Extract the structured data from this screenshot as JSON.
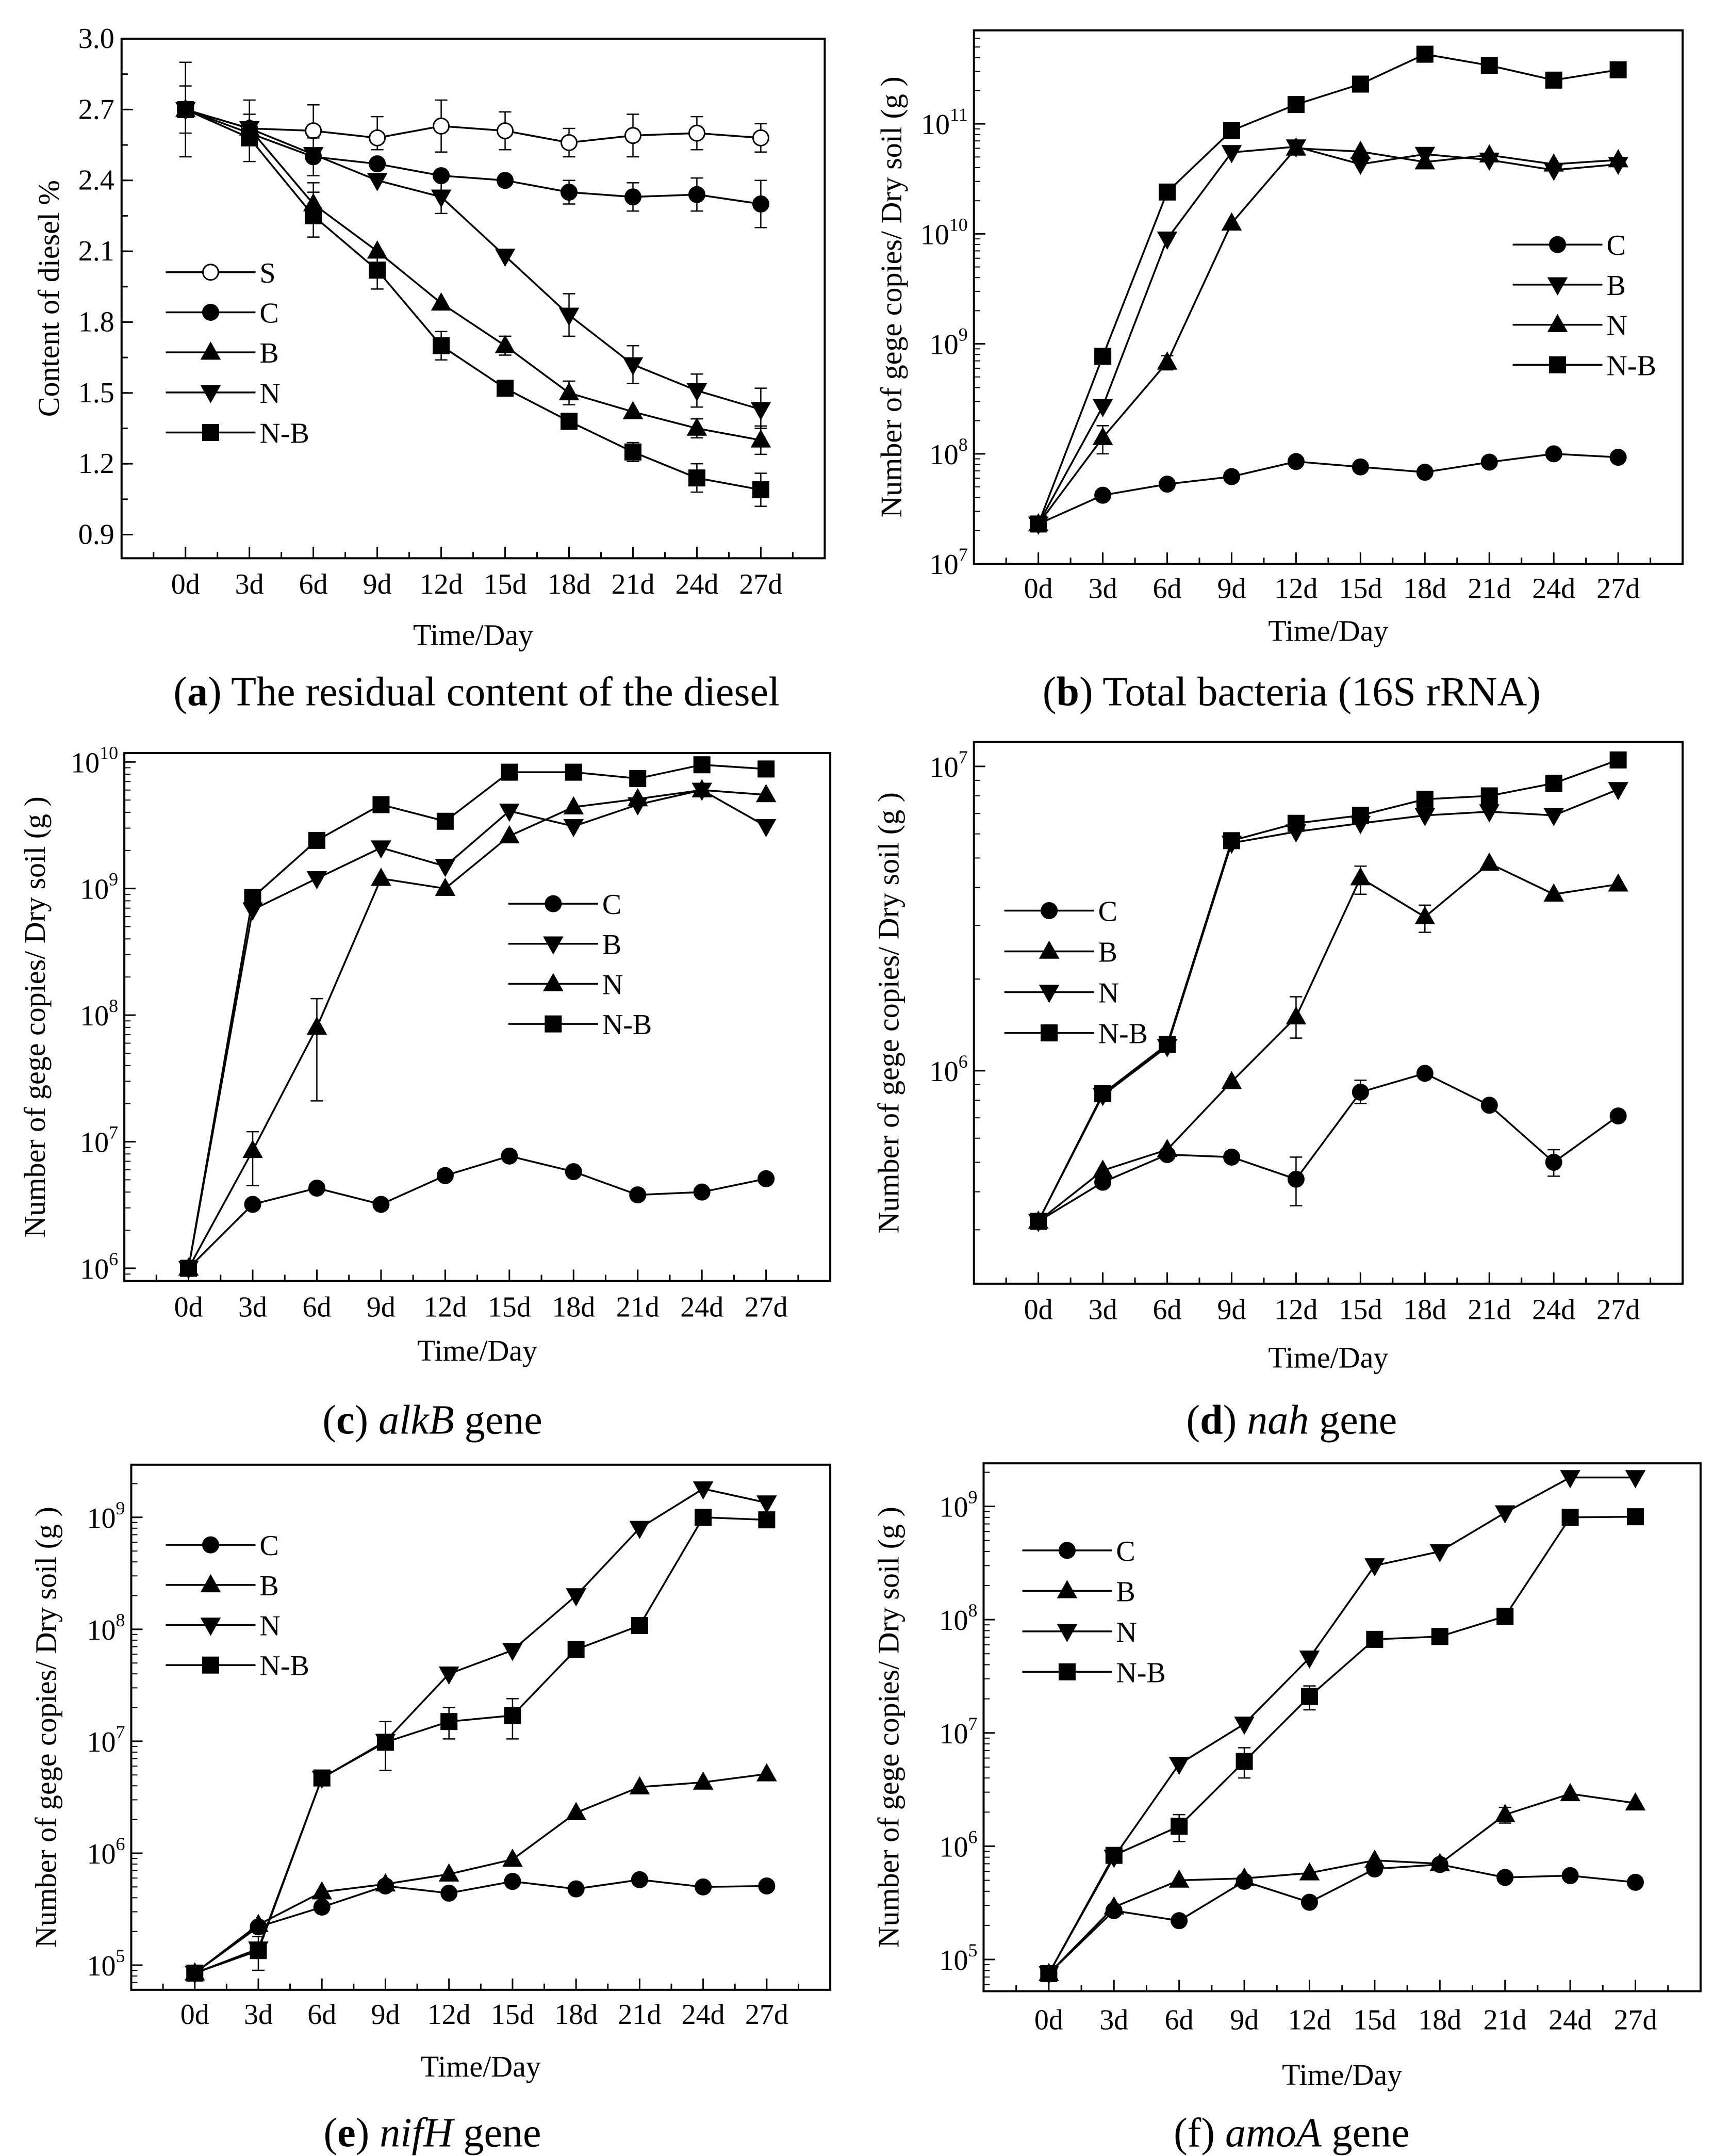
{
  "chart_data": [
    {
      "id": "a",
      "type": "line",
      "scale": "linear",
      "caption": {
        "letter": "a",
        "italic": "",
        "text": "The residual content of the diesel",
        "bold_letter": true
      },
      "xlabel": "Time/Day",
      "ylabel": "Content of diesel %",
      "x": [
        0,
        3,
        6,
        9,
        12,
        15,
        18,
        21,
        24,
        27
      ],
      "xtick_labels": [
        "0d",
        "3d",
        "6d",
        "9d",
        "12d",
        "15d",
        "18d",
        "21d",
        "24d",
        "27d"
      ],
      "xlim": [
        -3,
        30
      ],
      "ylim": [
        0.8,
        3.0
      ],
      "yticks": [
        0.9,
        1.2,
        1.5,
        1.8,
        2.1,
        2.4,
        2.7,
        3.0
      ],
      "ytick_labels": [
        "0.9",
        "1.2",
        "1.5",
        "1.8",
        "2.1",
        "2.4",
        "2.7",
        "3.0"
      ],
      "legend_position": "center-left",
      "series": [
        {
          "name": "S",
          "marker": "open-circle",
          "values": [
            2.7,
            2.62,
            2.61,
            2.58,
            2.63,
            2.61,
            2.56,
            2.59,
            2.6,
            2.58
          ],
          "errors": [
            [
              0,
              2.5,
              2.9
            ],
            [
              1,
              2.55,
              2.74
            ],
            [
              2,
              2.5,
              2.72
            ],
            [
              3,
              2.53,
              2.67
            ],
            [
              4,
              2.52,
              2.74
            ],
            [
              5,
              2.53,
              2.69
            ],
            [
              6,
              2.5,
              2.62
            ],
            [
              7,
              2.5,
              2.68
            ],
            [
              8,
              2.53,
              2.67
            ],
            [
              9,
              2.52,
              2.64
            ]
          ]
        },
        {
          "name": "C",
          "marker": "circle",
          "values": [
            2.7,
            2.6,
            2.5,
            2.47,
            2.42,
            2.4,
            2.35,
            2.33,
            2.34,
            2.3
          ],
          "errors": [
            [
              2,
              2.42,
              2.58
            ],
            [
              6,
              2.3,
              2.4
            ],
            [
              7,
              2.27,
              2.39
            ],
            [
              8,
              2.27,
              2.41
            ],
            [
              9,
              2.2,
              2.4
            ]
          ]
        },
        {
          "name": "B",
          "marker": "triangle-up",
          "values": [
            2.7,
            2.62,
            2.3,
            2.1,
            1.88,
            1.7,
            1.5,
            1.42,
            1.35,
            1.3
          ],
          "errors": [
            [
              2,
              2.22,
              2.39
            ],
            [
              5,
              1.66,
              1.74
            ],
            [
              6,
              1.45,
              1.55
            ],
            [
              8,
              1.31,
              1.39
            ],
            [
              9,
              1.24,
              1.36
            ]
          ]
        },
        {
          "name": "N",
          "marker": "triangle-down",
          "values": [
            2.7,
            2.62,
            2.51,
            2.4,
            2.33,
            2.08,
            1.83,
            1.62,
            1.51,
            1.43
          ],
          "errors": [
            [
              0,
              2.6,
              2.8
            ],
            [
              4,
              2.26,
              2.4
            ],
            [
              6,
              1.74,
              1.92
            ],
            [
              7,
              1.54,
              1.7
            ],
            [
              8,
              1.44,
              1.58
            ],
            [
              9,
              1.35,
              1.52
            ]
          ]
        },
        {
          "name": "N-B",
          "marker": "square",
          "values": [
            2.7,
            2.58,
            2.25,
            2.02,
            1.7,
            1.52,
            1.38,
            1.25,
            1.14,
            1.09
          ],
          "errors": [
            [
              1,
              2.48,
              2.68
            ],
            [
              2,
              2.16,
              2.35
            ],
            [
              3,
              1.94,
              2.1
            ],
            [
              4,
              1.64,
              1.76
            ],
            [
              7,
              1.21,
              1.29
            ],
            [
              8,
              1.08,
              1.2
            ],
            [
              9,
              1.02,
              1.16
            ]
          ]
        }
      ]
    },
    {
      "id": "b",
      "type": "line",
      "scale": "log",
      "caption": {
        "letter": "b",
        "italic": "",
        "text": "Total bacteria (16S rRNA)",
        "bold_letter": true
      },
      "xlabel": "Time/Day",
      "ylabel": "Number of gege copies/ Dry soil (g )",
      "x": [
        0,
        3,
        6,
        9,
        12,
        15,
        18,
        21,
        24,
        27
      ],
      "xtick_labels": [
        "0d",
        "3d",
        "6d",
        "9d",
        "12d",
        "15d",
        "18d",
        "21d",
        "24d",
        "27d"
      ],
      "xlim": [
        -3,
        30
      ],
      "ylim_log10": [
        7,
        11.85
      ],
      "yticks_exp": [
        7,
        8,
        9,
        10,
        11
      ],
      "legend_position": "center-right",
      "series": [
        {
          "name": "C",
          "marker": "circle",
          "values": [
            23000000.0,
            42000000.0,
            53000000.0,
            62000000.0,
            85000000.0,
            76000000.0,
            68000000.0,
            84000000.0,
            100000000.0,
            93000000.0
          ]
        },
        {
          "name": "B",
          "marker": "triangle-down",
          "values": [
            23000000.0,
            270000000.0,
            9000000000.0,
            55000000000.0,
            62000000000.0,
            43000000000.0,
            53000000000.0,
            47000000000.0,
            38000000000.0,
            43000000000.0
          ]
        },
        {
          "name": "N",
          "marker": "triangle-up",
          "values": [
            23000000.0,
            140000000.0,
            680000000.0,
            12500000000.0,
            60000000000.0,
            56000000000.0,
            45000000000.0,
            52000000000.0,
            43000000000.0,
            47000000000.0
          ],
          "errors": [
            [
              1,
              100000000.0,
              180000000.0
            ],
            [
              2,
              580000000.0,
              780000000.0
            ]
          ]
        },
        {
          "name": "N-B",
          "marker": "square",
          "values": [
            23000000.0,
            770000000.0,
            24000000000.0,
            87000000000.0,
            150000000000.0,
            230000000000.0,
            430000000000.0,
            340000000000.0,
            250000000000.0,
            310000000000.0
          ]
        }
      ]
    },
    {
      "id": "c",
      "type": "line",
      "scale": "log",
      "caption": {
        "letter": "c",
        "italic": "alkB",
        "text": " gene",
        "bold_letter": true
      },
      "xlabel": "Time/Day",
      "ylabel": "Number of gege copies/ Dry soil (g )",
      "x": [
        0,
        3,
        6,
        9,
        12,
        15,
        18,
        21,
        24,
        27
      ],
      "xtick_labels": [
        "0d",
        "3d",
        "6d",
        "9d",
        "12d",
        "15d",
        "18d",
        "21d",
        "24d",
        "27d"
      ],
      "xlim": [
        -3,
        30
      ],
      "ylim_log10": [
        5.9,
        10.07
      ],
      "yticks_exp": [
        6,
        7,
        8,
        9,
        10
      ],
      "legend_position": "center-right",
      "series": [
        {
          "name": "C",
          "marker": "circle",
          "values": [
            1000000.0,
            3200000.0,
            4300000.0,
            3200000.0,
            5400000.0,
            7700000.0,
            5800000.0,
            3800000.0,
            4000000.0,
            5100000.0
          ]
        },
        {
          "name": "B",
          "marker": "triangle-down",
          "values": [
            1000000.0,
            680000000.0,
            1200000000.0,
            2100000000.0,
            1500000000.0,
            4100000000.0,
            3100000000.0,
            4600000000.0,
            6000000000.0,
            3100000000.0
          ]
        },
        {
          "name": "N",
          "marker": "triangle-up",
          "values": [
            1000000.0,
            8500000.0,
            80000000.0,
            1200000000.0,
            1000000000.0,
            2600000000.0,
            4400000000.0,
            5100000000.0,
            6000000000.0,
            5500000000.0
          ],
          "errors": [
            [
              1,
              4500000.0,
              12000000.0
            ],
            [
              2,
              21000000.0,
              135000000.0
            ]
          ]
        },
        {
          "name": "N-B",
          "marker": "square",
          "values": [
            1000000.0,
            850000000.0,
            2400000000.0,
            4600000000.0,
            3400000000.0,
            8300000000.0,
            8300000000.0,
            7400000000.0,
            9500000000.0,
            8800000000.0
          ]
        }
      ]
    },
    {
      "id": "d",
      "type": "line",
      "scale": "log",
      "caption": {
        "letter": "d",
        "italic": "nah",
        "text": " gene",
        "bold_letter": true
      },
      "xlabel": "Time/Day",
      "ylabel": "Number of gege copies/ Dry soil (g )",
      "x": [
        0,
        3,
        6,
        9,
        12,
        15,
        18,
        21,
        24,
        27
      ],
      "xtick_labels": [
        "0d",
        "3d",
        "6d",
        "9d",
        "12d",
        "15d",
        "18d",
        "21d",
        "24d",
        "27d"
      ],
      "xlim": [
        -3,
        30
      ],
      "ylim_log10": [
        5.3,
        7.08
      ],
      "yticks_exp": [
        6,
        7
      ],
      "legend_position": "center-left",
      "series": [
        {
          "name": "C",
          "marker": "circle",
          "values": [
            320000.0,
            430000.0,
            530000.0,
            520000.0,
            440000.0,
            850000.0,
            980000.0,
            770000.0,
            500000.0,
            710000.0
          ],
          "errors": [
            [
              4,
              360000.0,
              520000.0
            ],
            [
              5,
              780000.0,
              930000.0
            ],
            [
              8,
              450000.0,
              550000.0
            ]
          ]
        },
        {
          "name": "B",
          "marker": "triangle-up",
          "values": [
            320000.0,
            470000.0,
            550000.0,
            920000.0,
            1500000.0,
            4300000.0,
            3200000.0,
            4800000.0,
            3800000.0,
            4100000.0
          ],
          "errors": [
            [
              4,
              1280000.0,
              1750000.0
            ],
            [
              5,
              3800000.0,
              4700000.0
            ],
            [
              6,
              2850000.0,
              3500000.0
            ]
          ]
        },
        {
          "name": "N",
          "marker": "triangle-down",
          "values": [
            320000.0,
            830000.0,
            1200000.0,
            5600000.0,
            6100000.0,
            6500000.0,
            6900000.0,
            7100000.0,
            6900000.0,
            8400000.0
          ]
        },
        {
          "name": "N-B",
          "marker": "square",
          "values": [
            320000.0,
            840000.0,
            1220000.0,
            5700000.0,
            6500000.0,
            6900000.0,
            7800000.0,
            8000000.0,
            8800000.0,
            10500000.0
          ]
        }
      ]
    },
    {
      "id": "e",
      "type": "line",
      "scale": "log",
      "caption": {
        "letter": "e",
        "italic": "nifH",
        "text": " gene",
        "bold_letter": true
      },
      "xlabel": "Time/Day",
      "ylabel": "Number of gege copies/ Dry soil (g )",
      "x": [
        0,
        3,
        6,
        9,
        12,
        15,
        18,
        21,
        24,
        27
      ],
      "xtick_labels": [
        "0d",
        "3d",
        "6d",
        "9d",
        "12d",
        "15d",
        "18d",
        "21d",
        "24d",
        "27d"
      ],
      "xlim": [
        -3,
        30
      ],
      "ylim_log10": [
        4.78,
        9.47
      ],
      "yticks_exp": [
        5,
        6,
        7,
        8,
        9
      ],
      "legend_position": "upper-left",
      "series": [
        {
          "name": "C",
          "marker": "circle",
          "values": [
            85000.0,
            220000.0,
            330000.0,
            510000.0,
            440000.0,
            560000.0,
            480000.0,
            580000.0,
            500000.0,
            510000.0
          ]
        },
        {
          "name": "B",
          "marker": "triangle-up",
          "values": [
            85000.0,
            230000.0,
            450000.0,
            530000.0,
            650000.0,
            880000.0,
            2300000.0,
            3900000.0,
            4300000.0,
            5100000.0
          ]
        },
        {
          "name": "N",
          "marker": "triangle-down",
          "values": [
            85000.0,
            140000.0,
            4700000.0,
            10000000.0,
            40000000.0,
            65000000.0,
            200000000.0,
            800000000.0,
            1800000000.0,
            1350000000.0
          ]
        },
        {
          "name": "N-B",
          "marker": "square",
          "values": [
            85000.0,
            135000.0,
            4700000.0,
            9800000.0,
            15000000.0,
            17000000.0,
            66000000.0,
            108000000.0,
            1000000000.0,
            950000000.0
          ],
          "errors": [
            [
              1,
              90000.0,
              180000.0
            ],
            [
              3,
              5500000.0,
              15000000.0
            ],
            [
              4,
              10500000.0,
              20000000.0
            ],
            [
              5,
              10500000.0,
              24000000.0
            ]
          ]
        }
      ]
    },
    {
      "id": "f",
      "type": "line",
      "scale": "log",
      "caption": {
        "letter": "f",
        "italic": "amoA",
        "text": " gene",
        "bold_letter": false
      },
      "xlabel": "Time/Day",
      "ylabel": "Number of gege copies/ Dry soil (g )",
      "x": [
        0,
        3,
        6,
        9,
        12,
        15,
        18,
        21,
        24,
        27
      ],
      "xtick_labels": [
        "0d",
        "3d",
        "6d",
        "9d",
        "12d",
        "15d",
        "18d",
        "21d",
        "24d",
        "27d"
      ],
      "xlim": [
        -3,
        30
      ],
      "ylim_log10": [
        4.72,
        9.38
      ],
      "yticks_exp": [
        5,
        6,
        7,
        8,
        9
      ],
      "legend_position": "upper-left",
      "series": [
        {
          "name": "C",
          "marker": "circle",
          "values": [
            75000.0,
            270000.0,
            220000.0,
            490000.0,
            320000.0,
            630000.0,
            690000.0,
            530000.0,
            550000.0,
            480000.0
          ]
        },
        {
          "name": "B",
          "marker": "triangle-up",
          "values": [
            75000.0,
            290000.0,
            500000.0,
            520000.0,
            580000.0,
            750000.0,
            700000.0,
            1900000.0,
            2900000.0,
            2400000.0
          ],
          "errors": [
            [
              7,
              1600000.0,
              2200000.0
            ]
          ]
        },
        {
          "name": "N",
          "marker": "triangle-down",
          "values": [
            75000.0,
            800000.0,
            5300000.0,
            12000000.0,
            46000000.0,
            300000000.0,
            400000000.0,
            880000000.0,
            1800000000.0,
            1800000000.0
          ]
        },
        {
          "name": "N-B",
          "marker": "square",
          "values": [
            75000.0,
            830000.0,
            1500000.0,
            5600000.0,
            21000000.0,
            67000000.0,
            71000000.0,
            107000000.0,
            800000000.0,
            810000000.0
          ],
          "errors": [
            [
              2,
              1100000.0,
              1900000.0
            ],
            [
              3,
              4000000.0,
              7400000.0
            ],
            [
              4,
              16000000.0,
              26000000.0
            ]
          ]
        }
      ]
    }
  ]
}
